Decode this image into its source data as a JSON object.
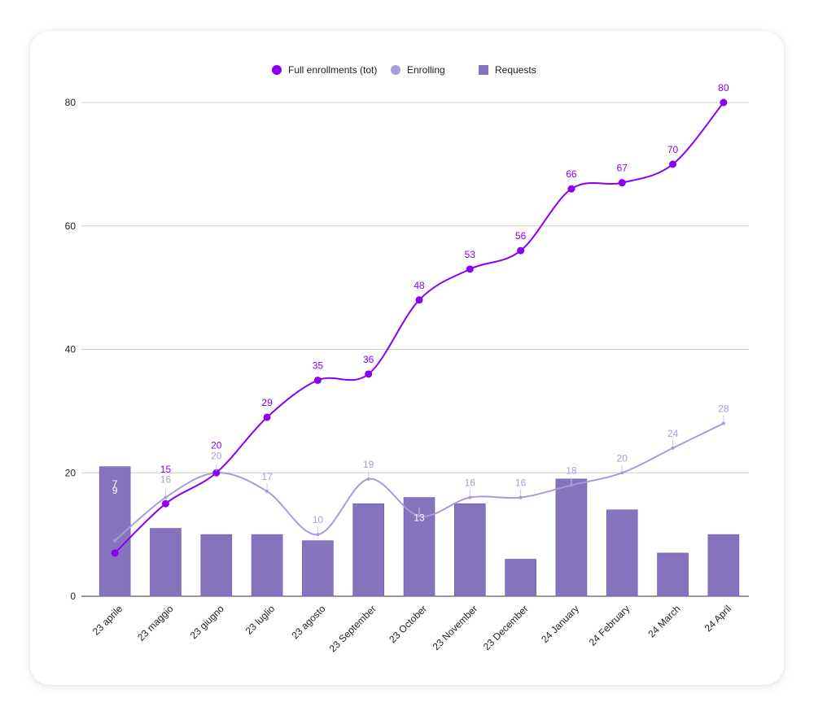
{
  "chart_data": {
    "type": "bar",
    "categories": [
      "23 aprile",
      "23 maggio",
      "23 giugno",
      "23 luglio",
      "23 agosto",
      "23 September",
      "23 October",
      "23 November",
      "23 December",
      "24 January",
      "24 February",
      "24 March",
      "24 April"
    ],
    "series": [
      {
        "name": "Full enrollments (tot)",
        "type": "line",
        "color": "#8a00f0",
        "values": [
          7,
          15,
          20,
          29,
          35,
          36,
          48,
          53,
          56,
          66,
          67,
          70,
          80
        ],
        "labels": [
          "7",
          "15",
          "20",
          "29",
          "35",
          "36",
          "48",
          "53",
          "56",
          "66",
          "67",
          "70",
          "80"
        ]
      },
      {
        "name": "Enrolling",
        "type": "line",
        "color": "#a99bd6",
        "values": [
          9,
          16,
          20,
          17,
          10,
          19,
          13,
          16,
          16,
          18,
          20,
          24,
          28
        ],
        "labels": [
          "9",
          "16",
          "20",
          "17",
          "10",
          "19",
          "13",
          "16",
          "16",
          "18",
          "20",
          "24",
          "28"
        ]
      },
      {
        "name": "Requests",
        "type": "bar",
        "color": "#8574bd",
        "values": [
          21,
          11,
          10,
          10,
          9,
          15,
          16,
          15,
          6,
          19,
          14,
          7,
          10
        ]
      }
    ],
    "ylim": [
      0,
      80
    ],
    "yticks": [
      "0",
      "20",
      "40",
      "60",
      "80"
    ],
    "grid": true,
    "legend": "top-center",
    "title": "",
    "xlabel": "",
    "ylabel": ""
  }
}
